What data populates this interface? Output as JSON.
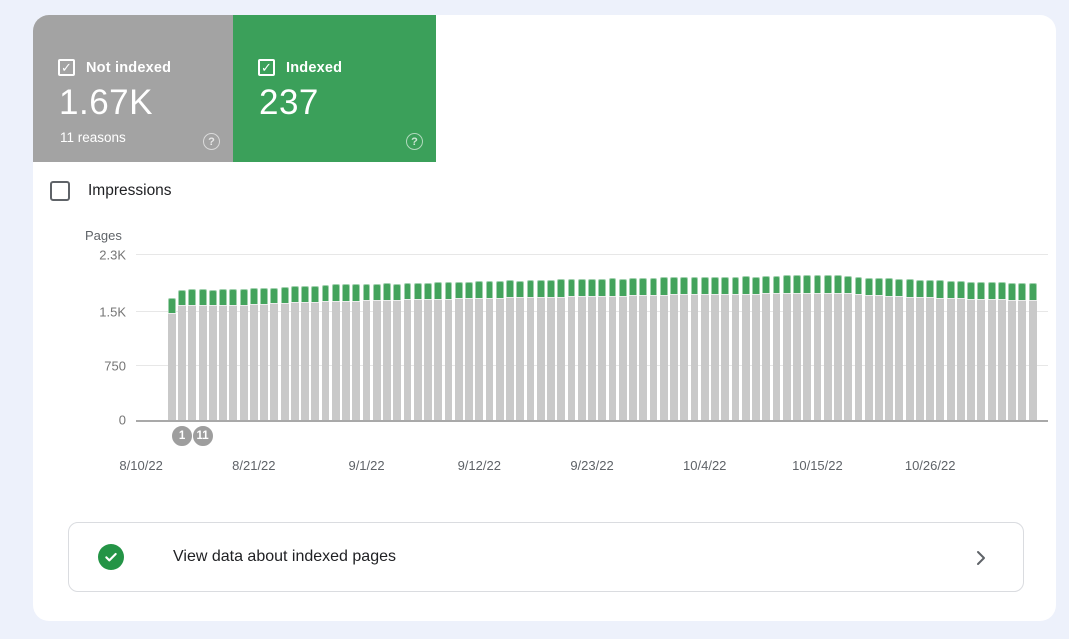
{
  "colors": {
    "page_bg": "#edf1fb",
    "card_bg": "#ffffff",
    "not_indexed_gray": "#a3a3a3",
    "indexed_green": "#3ba05a",
    "bar_gray": "#c9c9c9",
    "bar_green": "#43a35c",
    "badge_gray": "#9e9e9e",
    "text_dark": "#202124",
    "text_gray": "#5f6368",
    "grid_line": "#e7e7e7",
    "axis_line": "#a9a9a9",
    "panel_border": "#dadce0",
    "check_green": "#249446"
  },
  "summary_cards": [
    {
      "label": "Not indexed",
      "value": "1.67K",
      "sub": "11 reasons",
      "checked": true,
      "check_glyph": "✓",
      "help_glyph": "?"
    },
    {
      "label": "Indexed",
      "value": "237",
      "sub": "",
      "checked": true,
      "check_glyph": "✓",
      "help_glyph": "?"
    }
  ],
  "impressions_toggle": {
    "label": "Impressions",
    "checked": false
  },
  "chart_data": {
    "type": "bar",
    "stacked": true,
    "ylabel": "Pages",
    "ylim": [
      0,
      2300
    ],
    "grid": true,
    "y_ticks": [
      {
        "label": "0",
        "value": 0
      },
      {
        "label": "750",
        "value": 750
      },
      {
        "label": "1.5K",
        "value": 1500
      },
      {
        "label": "2.3K",
        "value": 2300
      }
    ],
    "x_tick_labels": [
      "8/10/22",
      "8/21/22",
      "9/1/22",
      "9/12/22",
      "9/23/22",
      "10/4/22",
      "10/15/22",
      "10/26/22"
    ],
    "x_tick_days": [
      0,
      11,
      22,
      33,
      44,
      55,
      66,
      77
    ],
    "total_days": 89,
    "bar_start_day": 3,
    "series": [
      {
        "name": "Not indexed",
        "color_key": "bar_gray",
        "values": [
          1495,
          1600,
          1605,
          1605,
          1600,
          1605,
          1610,
          1610,
          1615,
          1620,
          1625,
          1630,
          1640,
          1645,
          1650,
          1655,
          1660,
          1665,
          1665,
          1670,
          1670,
          1675,
          1675,
          1680,
          1680,
          1685,
          1690,
          1690,
          1695,
          1700,
          1700,
          1705,
          1705,
          1710,
          1710,
          1715,
          1715,
          1720,
          1720,
          1725,
          1725,
          1730,
          1730,
          1735,
          1735,
          1740,
          1740,
          1745,
          1745,
          1750,
          1750,
          1750,
          1755,
          1755,
          1755,
          1760,
          1760,
          1760,
          1765,
          1765,
          1765,
          1770,
          1770,
          1775,
          1775,
          1770,
          1765,
          1755,
          1745,
          1740,
          1735,
          1730,
          1720,
          1715,
          1710,
          1705,
          1700,
          1695,
          1690,
          1685,
          1680,
          1680,
          1675,
          1670,
          1670
        ]
      },
      {
        "name": "Indexed",
        "color_key": "bar_green",
        "values": [
          205,
          215,
          215,
          220,
          215,
          220,
          215,
          220,
          220,
          215,
          220,
          220,
          225,
          225,
          220,
          225,
          230,
          225,
          230,
          225,
          230,
          230,
          225,
          230,
          235,
          230,
          235,
          230,
          235,
          230,
          235,
          230,
          235,
          235,
          230,
          235,
          240,
          235,
          240,
          235,
          240,
          235,
          240,
          240,
          235,
          240,
          245,
          240,
          245,
          240,
          245,
          240,
          245,
          240,
          245,
          240,
          245,
          240,
          245,
          245,
          250,
          245,
          250,
          250,
          245,
          250,
          245,
          245,
          240,
          245,
          240,
          240,
          240,
          240,
          240,
          240,
          240,
          240,
          240,
          240,
          240,
          237,
          237,
          237,
          237
        ]
      }
    ],
    "markers": [
      {
        "label": "1",
        "day": 4
      },
      {
        "label": "11",
        "day": 6
      }
    ]
  },
  "footer_link": {
    "label": "View data about indexed pages"
  }
}
